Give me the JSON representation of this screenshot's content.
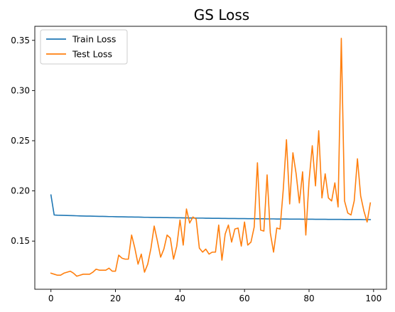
{
  "chart_data": {
    "type": "line",
    "title": "GS Loss",
    "xlabel": "",
    "ylabel": "",
    "xlim": [
      -5,
      104
    ],
    "ylim": [
      0.102,
      0.364
    ],
    "xticks": [
      0,
      20,
      40,
      60,
      80,
      100
    ],
    "xtick_labels": [
      "0",
      "20",
      "40",
      "60",
      "80",
      "100"
    ],
    "yticks": [
      0.15,
      0.2,
      0.25,
      0.3,
      0.35
    ],
    "ytick_labels": [
      "0.15",
      "0.20",
      "0.25",
      "0.30",
      "0.35"
    ],
    "grid": false,
    "legend_position": "top-left",
    "series": [
      {
        "name": "Train Loss",
        "color": "#1f77b4",
        "x": [
          0,
          1,
          2,
          3,
          4,
          5,
          6,
          7,
          8,
          9,
          10,
          11,
          12,
          13,
          14,
          15,
          16,
          17,
          18,
          19,
          20,
          21,
          22,
          23,
          24,
          25,
          26,
          27,
          28,
          29,
          30,
          31,
          32,
          33,
          34,
          35,
          36,
          37,
          38,
          39,
          40,
          41,
          42,
          43,
          44,
          45,
          46,
          47,
          48,
          49,
          50,
          51,
          52,
          53,
          54,
          55,
          56,
          57,
          58,
          59,
          60,
          61,
          62,
          63,
          64,
          65,
          66,
          67,
          68,
          69,
          70,
          71,
          72,
          73,
          74,
          75,
          76,
          77,
          78,
          79,
          80,
          81,
          82,
          83,
          84,
          85,
          86,
          87,
          88,
          89,
          90,
          91,
          92,
          93,
          94,
          95,
          96,
          97,
          98,
          99
        ],
        "values": [
          0.196,
          0.176,
          0.1758,
          0.1757,
          0.1756,
          0.1755,
          0.1754,
          0.1753,
          0.1752,
          0.1751,
          0.175,
          0.1749,
          0.1749,
          0.1748,
          0.1747,
          0.1746,
          0.1746,
          0.1745,
          0.1744,
          0.1744,
          0.1743,
          0.1742,
          0.1742,
          0.1741,
          0.174,
          0.174,
          0.1739,
          0.1739,
          0.1738,
          0.1737,
          0.1737,
          0.1736,
          0.1736,
          0.1735,
          0.1735,
          0.1734,
          0.1734,
          0.1733,
          0.1733,
          0.1732,
          0.1732,
          0.1731,
          0.1731,
          0.173,
          0.173,
          0.1729,
          0.1729,
          0.1729,
          0.1728,
          0.1728,
          0.1727,
          0.1727,
          0.1727,
          0.1726,
          0.1726,
          0.1725,
          0.1725,
          0.1725,
          0.1724,
          0.1724,
          0.1724,
          0.1723,
          0.1723,
          0.1723,
          0.1722,
          0.1722,
          0.1722,
          0.1721,
          0.1721,
          0.1721,
          0.172,
          0.172,
          0.172,
          0.172,
          0.1719,
          0.1719,
          0.1719,
          0.1719,
          0.1718,
          0.1718,
          0.1718,
          0.1718,
          0.1717,
          0.1717,
          0.1717,
          0.1717,
          0.1716,
          0.1716,
          0.1716,
          0.1716,
          0.1716,
          0.1715,
          0.1715,
          0.1715,
          0.1715,
          0.1715,
          0.1715,
          0.1714,
          0.1714,
          0.1714
        ]
      },
      {
        "name": "Test Loss",
        "color": "#ff7f0e",
        "x": [
          0,
          1,
          2,
          3,
          4,
          5,
          6,
          7,
          8,
          9,
          10,
          11,
          12,
          13,
          14,
          15,
          16,
          17,
          18,
          19,
          20,
          21,
          22,
          23,
          24,
          25,
          26,
          27,
          28,
          29,
          30,
          31,
          32,
          33,
          34,
          35,
          36,
          37,
          38,
          39,
          40,
          41,
          42,
          43,
          44,
          45,
          46,
          47,
          48,
          49,
          50,
          51,
          52,
          53,
          54,
          55,
          56,
          57,
          58,
          59,
          60,
          61,
          62,
          63,
          64,
          65,
          66,
          67,
          68,
          69,
          70,
          71,
          72,
          73,
          74,
          75,
          76,
          77,
          78,
          79,
          80,
          81,
          82,
          83,
          84,
          85,
          86,
          87,
          88,
          89,
          90,
          91,
          92,
          93,
          94,
          95,
          96,
          97,
          98,
          99
        ],
        "values": [
          0.118,
          0.117,
          0.116,
          0.116,
          0.118,
          0.119,
          0.12,
          0.118,
          0.115,
          0.116,
          0.117,
          0.117,
          0.117,
          0.119,
          0.122,
          0.121,
          0.121,
          0.121,
          0.123,
          0.12,
          0.12,
          0.136,
          0.133,
          0.132,
          0.132,
          0.156,
          0.143,
          0.127,
          0.137,
          0.119,
          0.127,
          0.143,
          0.165,
          0.15,
          0.134,
          0.142,
          0.156,
          0.153,
          0.132,
          0.145,
          0.171,
          0.146,
          0.182,
          0.168,
          0.174,
          0.172,
          0.143,
          0.139,
          0.142,
          0.137,
          0.139,
          0.139,
          0.166,
          0.131,
          0.157,
          0.166,
          0.149,
          0.162,
          0.163,
          0.145,
          0.169,
          0.146,
          0.149,
          0.164,
          0.228,
          0.161,
          0.16,
          0.216,
          0.158,
          0.139,
          0.163,
          0.162,
          0.201,
          0.251,
          0.187,
          0.238,
          0.217,
          0.188,
          0.219,
          0.156,
          0.21,
          0.245,
          0.205,
          0.26,
          0.193,
          0.217,
          0.193,
          0.19,
          0.208,
          0.184,
          0.352,
          0.19,
          0.178,
          0.176,
          0.19,
          0.232,
          0.195,
          0.18,
          0.169,
          0.188
        ]
      }
    ]
  }
}
